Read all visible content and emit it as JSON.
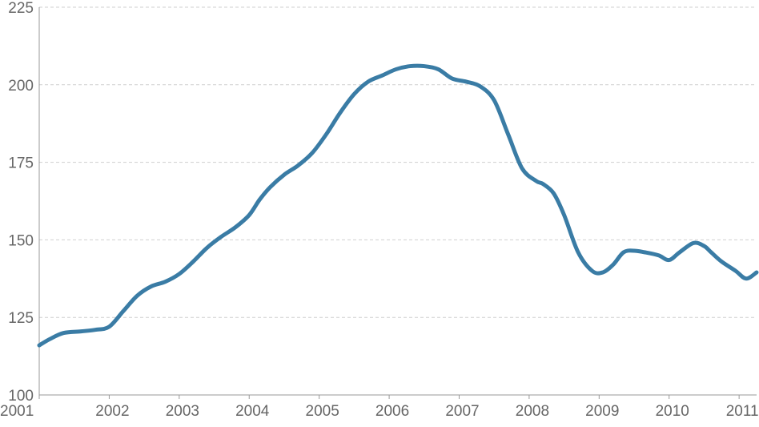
{
  "chart_data": {
    "type": "line",
    "title": "",
    "xlabel": "",
    "ylabel": "",
    "x_ticks": [
      "2001",
      "2002",
      "2003",
      "2004",
      "2005",
      "2006",
      "2007",
      "2008",
      "2009",
      "2010",
      "2011"
    ],
    "y_ticks": [
      "100",
      "125",
      "150",
      "175",
      "200",
      "225"
    ],
    "xlim": [
      2001.0,
      2011.25
    ],
    "ylim": [
      100,
      225
    ],
    "grid": "horizontal dashed",
    "series": [
      {
        "color": "#3a7ca5",
        "x": [
          2001.0,
          2001.15,
          2001.35,
          2001.6,
          2001.8,
          2002.0,
          2002.2,
          2002.4,
          2002.6,
          2002.8,
          2003.0,
          2003.2,
          2003.4,
          2003.6,
          2003.8,
          2004.0,
          2004.15,
          2004.3,
          2004.5,
          2004.7,
          2004.9,
          2005.1,
          2005.3,
          2005.5,
          2005.7,
          2005.9,
          2006.1,
          2006.3,
          2006.5,
          2006.7,
          2006.9,
          2007.1,
          2007.3,
          2007.5,
          2007.7,
          2007.9,
          2008.1,
          2008.2,
          2008.35,
          2008.5,
          2008.7,
          2008.9,
          2009.05,
          2009.2,
          2009.35,
          2009.5,
          2009.65,
          2009.85,
          2010.0,
          2010.15,
          2010.35,
          2010.5,
          2010.6,
          2010.75,
          2010.95,
          2011.1,
          2011.25
        ],
        "y": [
          116,
          118,
          120,
          120.5,
          121,
          122,
          127,
          132,
          135,
          136.5,
          139,
          143,
          147.5,
          151,
          154,
          158,
          163,
          167,
          171,
          174,
          178,
          184,
          191,
          197,
          201,
          203,
          205,
          206,
          206,
          205,
          202,
          201,
          199.5,
          195,
          184,
          173,
          169,
          168,
          165,
          158,
          146,
          140,
          139.5,
          142,
          146,
          146.5,
          146,
          145,
          143.5,
          146,
          149,
          148,
          146,
          143,
          140,
          137.5,
          139.5
        ]
      }
    ]
  }
}
